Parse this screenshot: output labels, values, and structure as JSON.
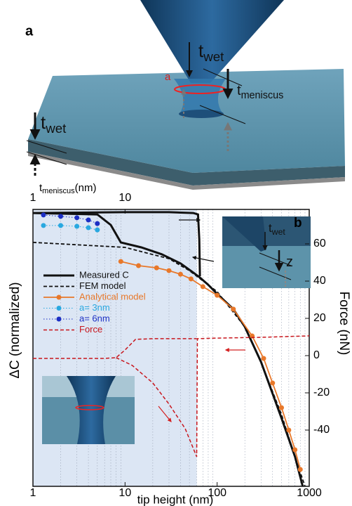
{
  "chart_data": {
    "type": "line",
    "xlabel": "tip height (nm)",
    "ylabel": "ΔC (normalized)",
    "y2label": "Force (nN)",
    "x2label": {
      "main": "t",
      "sub": "meniscus",
      "unit": "(nm)"
    },
    "xscale": "log",
    "xlim": [
      1,
      1000
    ],
    "xticks": [
      1,
      10,
      100,
      1000
    ],
    "x2lim": [
      1,
      1000
    ],
    "x2ticks": [
      1,
      10
    ],
    "ylim": [
      0,
      1
    ],
    "y2lim": [
      -70.2,
      78.5
    ],
    "y2ticks": [
      -40,
      -20,
      0,
      20,
      40,
      60
    ],
    "shaded_region": [
      1,
      60
    ],
    "series": [
      {
        "name": "Measured C",
        "color": "#111111",
        "dash": "solid",
        "width": 3,
        "marker": "none",
        "x": [
          1,
          10,
          30,
          55,
          62,
          64,
          65,
          null,
          1,
          5,
          7,
          9,
          15,
          25,
          40,
          55,
          65,
          80,
          100,
          150,
          200,
          300,
          400,
          500,
          700,
          850
        ],
        "values": [
          0.987,
          0.99,
          0.99,
          0.987,
          0.982,
          0.893,
          0.759,
          null,
          0.987,
          0.982,
          0.944,
          0.881,
          0.863,
          0.838,
          0.805,
          0.772,
          0.754,
          0.728,
          0.695,
          0.64,
          0.576,
          0.449,
          0.335,
          0.246,
          0.107,
          0
        ]
      },
      {
        "name": "FEM model",
        "color": "#111111",
        "dash": "dashed",
        "width": 1.8,
        "marker": "none",
        "x": [
          1,
          10,
          30,
          50,
          100,
          200,
          300,
          500,
          700,
          900
        ],
        "values": [
          0.881,
          0.863,
          0.822,
          0.779,
          0.703,
          0.576,
          0.449,
          0.259,
          0.107,
          0
        ]
      },
      {
        "name": "Analytical model",
        "color": "#e8782a",
        "dash": "solid",
        "width": 1.8,
        "marker": "circle",
        "x": [
          9,
          14,
          22,
          30,
          40,
          52,
          70,
          100,
          150,
          240,
          320,
          400,
          500,
          600,
          700,
          800
        ],
        "values": [
          0.812,
          0.797,
          0.789,
          0.779,
          0.766,
          0.749,
          0.721,
          0.69,
          0.64,
          0.543,
          0.462,
          0.373,
          0.284,
          0.203,
          0.132,
          0.061
        ]
      },
      {
        "name": "a= 3nm",
        "color": "#29a8e0",
        "dash": "dotted",
        "width": 1,
        "marker": "circle",
        "x": [
          1.3,
          2,
          3,
          4,
          5
        ],
        "values": [
          0.942,
          0.942,
          0.939,
          0.934,
          0.926
        ]
      },
      {
        "name": "a= 6nm",
        "color": "#1c2fc4",
        "dash": "dotted",
        "width": 1,
        "marker": "circle",
        "x": [
          1.3,
          2,
          3,
          4,
          5
        ],
        "values": [
          0.98,
          0.975,
          0.97,
          0.962,
          0.949
        ]
      },
      {
        "name": "Force",
        "color": "#c8161d",
        "dash": "dashed",
        "width": 1.5,
        "marker": "none",
        "axis": "y2",
        "x": [
          1,
          3,
          6,
          8,
          10,
          13,
          20,
          40,
          60,
          null,
          8,
          12,
          20,
          30,
          45,
          60,
          61,
          100,
          300,
          1000
        ],
        "values": [
          -1.5,
          -1.5,
          -1.5,
          -1.1,
          3.0,
          8.7,
          9.1,
          9.1,
          9.1,
          null,
          -1.1,
          -5.3,
          -14.7,
          -26.0,
          -39.2,
          -54.3,
          9.1,
          9.4,
          9.8,
          10.6
        ]
      }
    ]
  },
  "figure": {
    "panel_a_label": "a",
    "panel_b_label": "b",
    "panel_a_annotations": [
      {
        "main": "t",
        "sub": "wet"
      },
      {
        "main": "t",
        "sub": "meniscus"
      },
      {
        "main": "a"
      },
      {
        "main": "t",
        "sub": "wet"
      }
    ],
    "inset_annotations": [
      {
        "main": "t",
        "sub": "wet"
      },
      {
        "main": "z"
      }
    ]
  }
}
